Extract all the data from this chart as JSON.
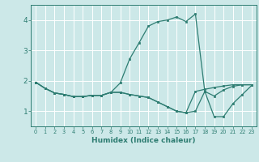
{
  "xlabel": "Humidex (Indice chaleur)",
  "bg_color": "#cce8e8",
  "line_color": "#2e7d72",
  "grid_color": "#ffffff",
  "xlim": [
    -0.5,
    23.5
  ],
  "ylim": [
    0.5,
    4.5
  ],
  "xticks": [
    0,
    1,
    2,
    3,
    4,
    5,
    6,
    7,
    8,
    9,
    10,
    11,
    12,
    13,
    14,
    15,
    16,
    17,
    18,
    19,
    20,
    21,
    22,
    23
  ],
  "yticks": [
    1,
    2,
    3,
    4
  ],
  "series": [
    [
      1.95,
      1.75,
      1.6,
      1.55,
      1.48,
      1.48,
      1.52,
      1.52,
      1.62,
      1.93,
      2.72,
      3.25,
      3.8,
      3.95,
      4.0,
      4.1,
      3.95,
      4.2,
      1.65,
      0.82,
      0.82,
      1.25,
      1.55,
      1.85
    ],
    [
      1.95,
      1.75,
      1.6,
      1.55,
      1.48,
      1.48,
      1.52,
      1.52,
      1.62,
      1.62,
      1.55,
      1.5,
      1.45,
      1.3,
      1.15,
      1.0,
      0.95,
      1.65,
      1.72,
      1.78,
      1.83,
      1.87,
      1.87,
      1.87
    ],
    [
      1.95,
      1.75,
      1.6,
      1.55,
      1.48,
      1.48,
      1.52,
      1.52,
      1.62,
      1.62,
      1.55,
      1.5,
      1.45,
      1.3,
      1.15,
      1.0,
      0.95,
      1.0,
      1.65,
      1.5,
      1.7,
      1.82,
      1.87,
      1.87
    ]
  ]
}
